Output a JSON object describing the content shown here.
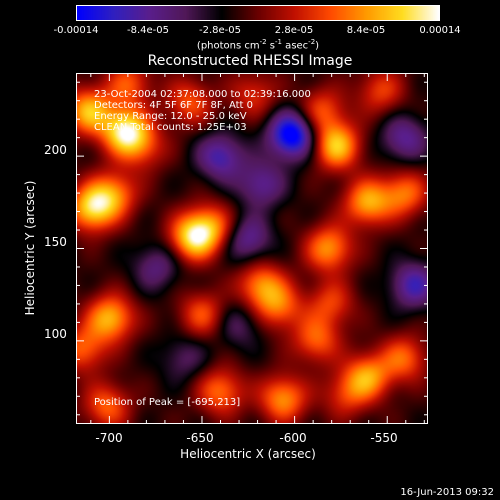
{
  "colorbar": {
    "colors": [
      "#0000ff",
      "#3020c0",
      "#5a1e8c",
      "#501858",
      "#000000",
      "#6a0000",
      "#c01000",
      "#ff4a00",
      "#ff9a00",
      "#ffdd20",
      "#ffffff"
    ],
    "ticks": [
      "-0.00014",
      "-8.4e-05",
      "-2.8e-05",
      "2.8e-05",
      "8.4e-05",
      "0.00014"
    ],
    "units": {
      "base": "(photons cm",
      "exp1": "-2",
      "mid1": " s",
      "exp2": "-1",
      "mid2": " asec",
      "exp3": "-2",
      "end": ")"
    }
  },
  "title": "Reconstructed RHESSI Image",
  "annotations": {
    "time": "23-Oct-2004 02:37:08.000 to 02:39:16.000",
    "detectors": "Detectors: 4F 5F 6F 7F 8F, Att 0",
    "energy": "Energy Range: 12.0 - 25.0 keV",
    "clean": "CLEAN     Total counts: 1.25E+03",
    "peak": "Position of Peak = [-695,213]"
  },
  "chart_data": {
    "type": "heatmap",
    "title": "Reconstructed RHESSI Image",
    "xlabel": "Heliocentric X (arcsec)",
    "ylabel": "Heliocentric Y (arcsec)",
    "xlim": [
      -718,
      -528
    ],
    "ylim": [
      55,
      245
    ],
    "xticks": [
      -700,
      -650,
      -600,
      -550
    ],
    "yticks": [
      100,
      150,
      200
    ],
    "zlim": [
      -0.00014,
      0.00014
    ],
    "peak_position": [
      -695,
      213
    ],
    "blobs": [
      {
        "x": -712,
        "y": 225,
        "v": 0.8
      },
      {
        "x": -692,
        "y": 214,
        "v": 1.0
      },
      {
        "x": -710,
        "y": 172,
        "v": 0.9
      },
      {
        "x": -698,
        "y": 180,
        "v": 0.6
      },
      {
        "x": -700,
        "y": 112,
        "v": 0.8
      },
      {
        "x": -715,
        "y": 95,
        "v": 0.55
      },
      {
        "x": -702,
        "y": 64,
        "v": 0.55
      },
      {
        "x": -682,
        "y": 205,
        "v": 0.4
      },
      {
        "x": -657,
        "y": 230,
        "v": 0.5
      },
      {
        "x": -655,
        "y": 156,
        "v": 0.9
      },
      {
        "x": -645,
        "y": 162,
        "v": 0.55
      },
      {
        "x": -650,
        "y": 114,
        "v": 0.5
      },
      {
        "x": -640,
        "y": 72,
        "v": 0.6
      },
      {
        "x": -640,
        "y": 200,
        "v": -0.6
      },
      {
        "x": -660,
        "y": 90,
        "v": -0.3
      },
      {
        "x": -622,
        "y": 234,
        "v": 0.4
      },
      {
        "x": -618,
        "y": 130,
        "v": 0.65
      },
      {
        "x": -608,
        "y": 118,
        "v": 0.55
      },
      {
        "x": -606,
        "y": 68,
        "v": 0.7
      },
      {
        "x": -601,
        "y": 212,
        "v": -1.0
      },
      {
        "x": -618,
        "y": 185,
        "v": -0.5
      },
      {
        "x": -625,
        "y": 155,
        "v": -0.5
      },
      {
        "x": -577,
        "y": 206,
        "v": 0.85
      },
      {
        "x": -585,
        "y": 225,
        "v": 0.5
      },
      {
        "x": -581,
        "y": 150,
        "v": 0.7
      },
      {
        "x": -580,
        "y": 120,
        "v": 0.45
      },
      {
        "x": -588,
        "y": 100,
        "v": 0.55
      },
      {
        "x": -572,
        "y": 70,
        "v": 0.4
      },
      {
        "x": -560,
        "y": 175,
        "v": 0.75
      },
      {
        "x": -540,
        "y": 180,
        "v": 0.6
      },
      {
        "x": -553,
        "y": 236,
        "v": 0.45
      },
      {
        "x": -560,
        "y": 80,
        "v": 0.7
      },
      {
        "x": -540,
        "y": 90,
        "v": 0.55
      },
      {
        "x": -540,
        "y": 210,
        "v": -0.5
      },
      {
        "x": -535,
        "y": 130,
        "v": -0.6
      },
      {
        "x": -675,
        "y": 140,
        "v": -0.4
      },
      {
        "x": -690,
        "y": 240,
        "v": 0.5
      },
      {
        "x": -630,
        "y": 108,
        "v": -0.3
      }
    ]
  },
  "footer": "16-Jun-2013 09:32"
}
